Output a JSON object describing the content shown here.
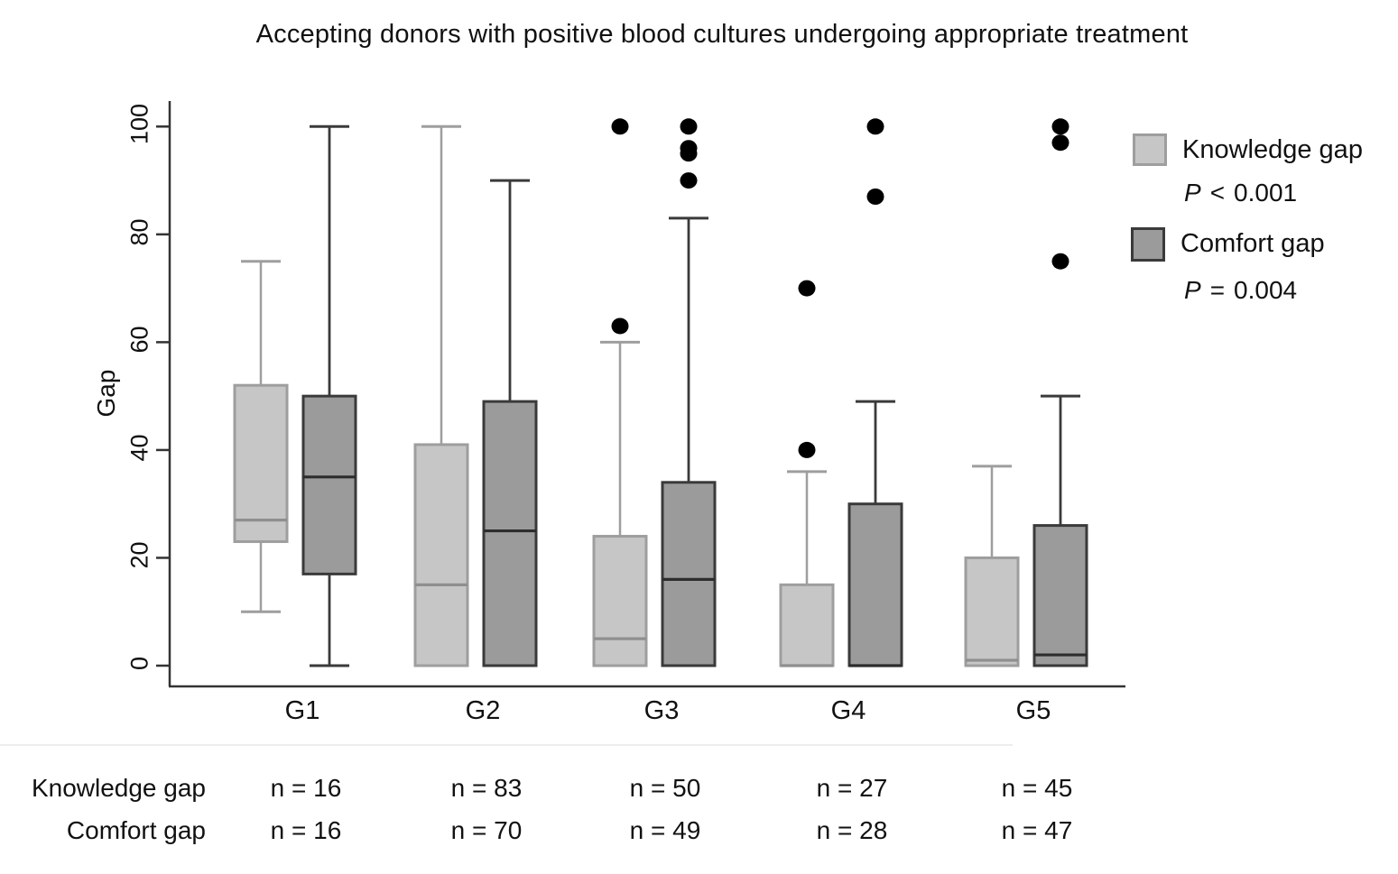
{
  "title": "Accepting donors with positive blood cultures undergoing appropriate treatment",
  "y_axis": {
    "label": "Gap",
    "ticks": [
      "0",
      "20",
      "40",
      "60",
      "80",
      "100"
    ]
  },
  "legend": {
    "knowledge_label": "Knowledge gap",
    "knowledge_p_symbol": "P",
    "knowledge_p_op": "<",
    "knowledge_p_value": "0.001",
    "comfort_label": "Comfort gap",
    "comfort_p_symbol": "P",
    "comfort_p_op": "=",
    "comfort_p_value": "0.004",
    "knowledge_color": "#c6c6c6",
    "knowledge_border": "#9e9e9e",
    "comfort_color": "#9b9b9b",
    "comfort_border": "#3a3a3a"
  },
  "chart_data": {
    "type": "boxplot",
    "title": "Accepting donors with positive blood cultures undergoing appropriate treatment",
    "ylabel": "Gap",
    "ylim": [
      0,
      100
    ],
    "yticks": [
      0,
      20,
      40,
      60,
      80,
      100
    ],
    "grid": false,
    "legend_position": "right",
    "categories": [
      "G1",
      "G2",
      "G3",
      "G4",
      "G5"
    ],
    "outlier_color": "#000000",
    "series": [
      {
        "name": "Knowledge gap",
        "p_value": "P < 0.001",
        "fill": "#c6c6c6",
        "stroke": "#9e9e9e",
        "median_stroke": "#8f8f8f",
        "boxes": [
          {
            "group": "G1",
            "whisker_low": 10,
            "q1": 23,
            "median": 27,
            "q3": 52,
            "whisker_high": 75,
            "outliers": [],
            "n": 16
          },
          {
            "group": "G2",
            "whisker_low": 0,
            "q1": 0,
            "median": 15,
            "q3": 41,
            "whisker_high": 100,
            "outliers": [],
            "n": 83
          },
          {
            "group": "G3",
            "whisker_low": 0,
            "q1": 0,
            "median": 5,
            "q3": 24,
            "whisker_high": 60,
            "outliers": [
              63,
              100
            ],
            "n": 50
          },
          {
            "group": "G4",
            "whisker_low": 0,
            "q1": 0,
            "median": 0,
            "q3": 15,
            "whisker_high": 36,
            "outliers": [
              40,
              70
            ],
            "n": 27
          },
          {
            "group": "G5",
            "whisker_low": 0,
            "q1": 0,
            "median": 1,
            "q3": 20,
            "whisker_high": 37,
            "outliers": [],
            "n": 45
          }
        ]
      },
      {
        "name": "Comfort gap",
        "p_value": "P = 0.004",
        "fill": "#9b9b9b",
        "stroke": "#3a3a3a",
        "median_stroke": "#2d2d2d",
        "boxes": [
          {
            "group": "G1",
            "whisker_low": 0,
            "q1": 17,
            "median": 35,
            "q3": 50,
            "whisker_high": 100,
            "outliers": [],
            "n": 16
          },
          {
            "group": "G2",
            "whisker_low": 0,
            "q1": 0,
            "median": 25,
            "q3": 49,
            "whisker_high": 90,
            "outliers": [],
            "n": 70
          },
          {
            "group": "G3",
            "whisker_low": 0,
            "q1": 0,
            "median": 16,
            "q3": 34,
            "whisker_high": 83,
            "outliers": [
              90,
              95,
              96,
              100
            ],
            "n": 49
          },
          {
            "group": "G4",
            "whisker_low": 0,
            "q1": 0,
            "median": 0,
            "q3": 30,
            "whisker_high": 49,
            "outliers": [
              87,
              100
            ],
            "n": 28
          },
          {
            "group": "G5",
            "whisker_low": 0,
            "q1": 0,
            "median": 2,
            "q3": 26,
            "whisker_high": 50,
            "outliers": [
              75,
              97,
              100
            ],
            "n": 47
          }
        ]
      }
    ]
  },
  "table": {
    "rows": [
      {
        "label": "Knowledge gap",
        "values": [
          "n = 16",
          "n = 83",
          "n = 50",
          "n = 27",
          "n = 45"
        ]
      },
      {
        "label": "Comfort gap",
        "values": [
          "n = 16",
          "n = 70",
          "n = 49",
          "n = 28",
          "n = 47"
        ]
      }
    ]
  }
}
